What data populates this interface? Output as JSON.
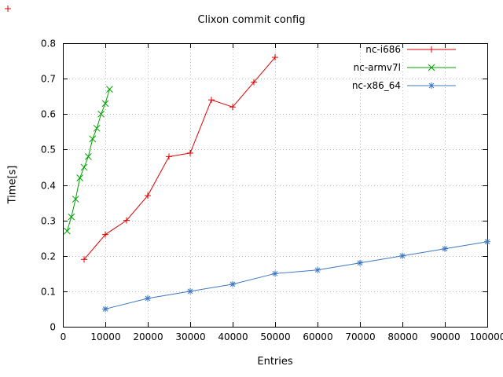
{
  "chart_data": {
    "type": "line",
    "title": "Clixon commit config",
    "xlabel": "Entries",
    "ylabel": "Time[s]",
    "xlim": [
      0,
      100000
    ],
    "ylim": [
      0,
      0.8
    ],
    "xticks": [
      0,
      10000,
      20000,
      30000,
      40000,
      50000,
      60000,
      70000,
      80000,
      90000,
      100000
    ],
    "xtick_labels": [
      "0",
      "10000",
      "20000",
      "30000",
      "40000",
      "50000",
      "60000",
      "70000",
      "80000",
      "90000",
      "100000"
    ],
    "yticks": [
      0,
      0.1,
      0.2,
      0.3,
      0.4,
      0.5,
      0.6,
      0.7,
      0.8
    ],
    "ytick_labels": [
      "0",
      "0.1",
      "0.2",
      "0.3",
      "0.4",
      "0.5",
      "0.6",
      "0.7",
      "0.8"
    ],
    "grid": true,
    "legend_position": "top-right",
    "series": [
      {
        "name": "nc-i686",
        "color": "#dc0000",
        "marker": "plus",
        "x": [
          5000,
          10000,
          15000,
          20000,
          25000,
          30000,
          35000,
          40000,
          45000,
          50000
        ],
        "y": [
          0.19,
          0.26,
          0.3,
          0.37,
          0.48,
          0.49,
          0.64,
          0.62,
          0.69,
          0.76
        ]
      },
      {
        "name": "nc-armv7l",
        "color": "#00a000",
        "marker": "x",
        "x": [
          1000,
          2000,
          3000,
          4000,
          5000,
          6000,
          7000,
          8000,
          9000,
          10000,
          11000
        ],
        "y": [
          0.27,
          0.31,
          0.36,
          0.42,
          0.45,
          0.48,
          0.53,
          0.56,
          0.6,
          0.63,
          0.67
        ]
      },
      {
        "name": "nc-x86_64",
        "color": "#3b78c2",
        "marker": "asterisk",
        "x": [
          10000,
          20000,
          30000,
          40000,
          50000,
          60000,
          70000,
          80000,
          90000,
          100000
        ],
        "y": [
          0.05,
          0.08,
          0.1,
          0.12,
          0.15,
          0.16,
          0.18,
          0.2,
          0.22,
          0.24
        ]
      }
    ],
    "corner_artifact": {
      "x": 10,
      "y": 11,
      "marker": "plus",
      "color": "#dc0000"
    }
  }
}
